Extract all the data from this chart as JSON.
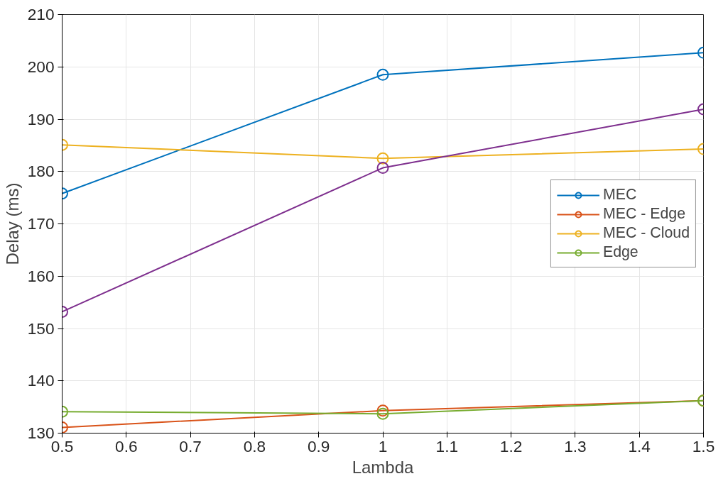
{
  "chart_data": {
    "type": "line",
    "xlabel": "Lambda",
    "ylabel": "Delay (ms)",
    "x": [
      0.5,
      1,
      1.5
    ],
    "xlim": [
      0.5,
      1.5
    ],
    "xticks": [
      0.5,
      0.6,
      0.7,
      0.8,
      0.9,
      1,
      1.1,
      1.2,
      1.3,
      1.4,
      1.5
    ],
    "ylim": [
      130,
      210
    ],
    "yticks": [
      130,
      140,
      150,
      160,
      170,
      180,
      190,
      200,
      210
    ],
    "grid": true,
    "legend": "right",
    "marker": "circle",
    "line_style": "solid",
    "series": [
      {
        "name": "MEC",
        "color": "#0072bd",
        "values": [
          175.8,
          198.5,
          202.7
        ]
      },
      {
        "name": "MEC - Edge",
        "color": "#d95319",
        "values": [
          131.1,
          134.3,
          136.2
        ]
      },
      {
        "name": "MEC - Cloud",
        "color": "#edb120",
        "values": [
          185.1,
          182.5,
          184.3
        ]
      },
      {
        "color": "#7e2f8e",
        "values": [
          153.2,
          180.7,
          191.9
        ]
      },
      {
        "name": "Edge",
        "color": "#77ac30",
        "values": [
          134.1,
          133.7,
          136.2
        ]
      }
    ]
  }
}
